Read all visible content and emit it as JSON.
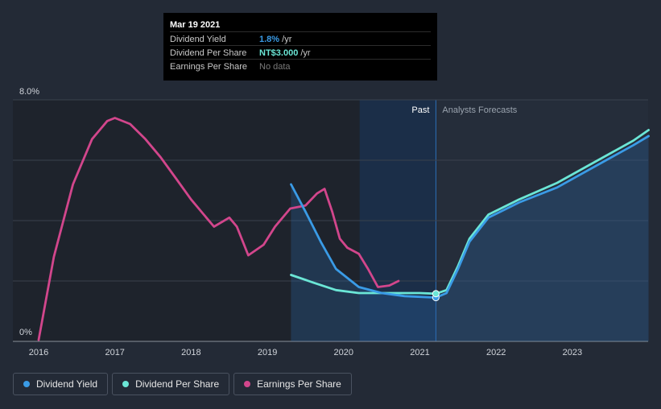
{
  "tooltip": {
    "date": "Mar 19 2021",
    "rows": [
      {
        "label": "Dividend Yield",
        "value": "1.8%",
        "unit": " /yr"
      },
      {
        "label": "Dividend Per Share",
        "value": "NT$3.000",
        "unit": " /yr"
      },
      {
        "label": "Earnings Per Share",
        "value": "No data",
        "unit": ""
      }
    ]
  },
  "legend": {
    "items": [
      {
        "label": "Dividend Yield",
        "color": "#3a9be6"
      },
      {
        "label": "Dividend Per Share",
        "color": "#6be6d6"
      },
      {
        "label": "Earnings Per Share",
        "color": "#d2468c"
      }
    ]
  },
  "chart_data": {
    "type": "line",
    "title": "",
    "xlabel": "",
    "ylabel": "",
    "ylim": [
      0,
      8.0
    ],
    "xlim": [
      2015.97,
      2024.0
    ],
    "x_ticks": [
      "2016",
      "2017",
      "2018",
      "2019",
      "2020",
      "2021",
      "2022",
      "2023"
    ],
    "y_axis_labels": [
      "0%",
      "8.0%"
    ],
    "region_labels": {
      "past": "Past",
      "forecast": "Analysts Forecasts"
    },
    "past_forecast_split": 2021.21,
    "highlight_start": 2020.21,
    "series": [
      {
        "name": "Dividend Yield",
        "color": "#3a9be6",
        "points": [
          [
            2019.31,
            5.2
          ],
          [
            2019.5,
            4.3
          ],
          [
            2019.7,
            3.3
          ],
          [
            2019.9,
            2.4
          ],
          [
            2020.2,
            1.8
          ],
          [
            2020.5,
            1.6
          ],
          [
            2020.8,
            1.5
          ],
          [
            2021.21,
            1.45
          ],
          [
            2021.35,
            1.6
          ],
          [
            2021.5,
            2.4
          ],
          [
            2021.65,
            3.3
          ],
          [
            2021.9,
            4.1
          ],
          [
            2022.3,
            4.6
          ],
          [
            2022.8,
            5.1
          ],
          [
            2023.3,
            5.8
          ],
          [
            2023.8,
            6.5
          ],
          [
            2024.0,
            6.8
          ]
        ]
      },
      {
        "name": "Dividend Per Share",
        "color": "#6be6d6",
        "points": [
          [
            2019.31,
            2.2
          ],
          [
            2019.6,
            1.95
          ],
          [
            2019.9,
            1.7
          ],
          [
            2020.2,
            1.6
          ],
          [
            2020.6,
            1.6
          ],
          [
            2021.0,
            1.6
          ],
          [
            2021.21,
            1.58
          ],
          [
            2021.35,
            1.7
          ],
          [
            2021.5,
            2.5
          ],
          [
            2021.65,
            3.4
          ],
          [
            2021.9,
            4.2
          ],
          [
            2022.3,
            4.7
          ],
          [
            2022.8,
            5.25
          ],
          [
            2023.3,
            5.95
          ],
          [
            2023.8,
            6.65
          ],
          [
            2024.0,
            7.0
          ]
        ]
      },
      {
        "name": "Earnings Per Share",
        "color": "#d2468c",
        "points": [
          [
            2016.0,
            0.05
          ],
          [
            2016.2,
            2.8
          ],
          [
            2016.45,
            5.2
          ],
          [
            2016.7,
            6.7
          ],
          [
            2016.9,
            7.3
          ],
          [
            2017.0,
            7.4
          ],
          [
            2017.2,
            7.2
          ],
          [
            2017.4,
            6.7
          ],
          [
            2017.6,
            6.1
          ],
          [
            2017.8,
            5.4
          ],
          [
            2018.0,
            4.7
          ],
          [
            2018.2,
            4.1
          ],
          [
            2018.3,
            3.8
          ],
          [
            2018.5,
            4.1
          ],
          [
            2018.6,
            3.8
          ],
          [
            2018.75,
            2.85
          ],
          [
            2018.95,
            3.2
          ],
          [
            2019.1,
            3.8
          ],
          [
            2019.3,
            4.4
          ],
          [
            2019.5,
            4.5
          ],
          [
            2019.65,
            4.9
          ],
          [
            2019.75,
            5.05
          ],
          [
            2019.85,
            4.3
          ],
          [
            2019.95,
            3.4
          ],
          [
            2020.05,
            3.1
          ],
          [
            2020.2,
            2.9
          ],
          [
            2020.32,
            2.4
          ],
          [
            2020.45,
            1.8
          ],
          [
            2020.6,
            1.85
          ],
          [
            2020.72,
            2.0
          ]
        ]
      }
    ]
  }
}
